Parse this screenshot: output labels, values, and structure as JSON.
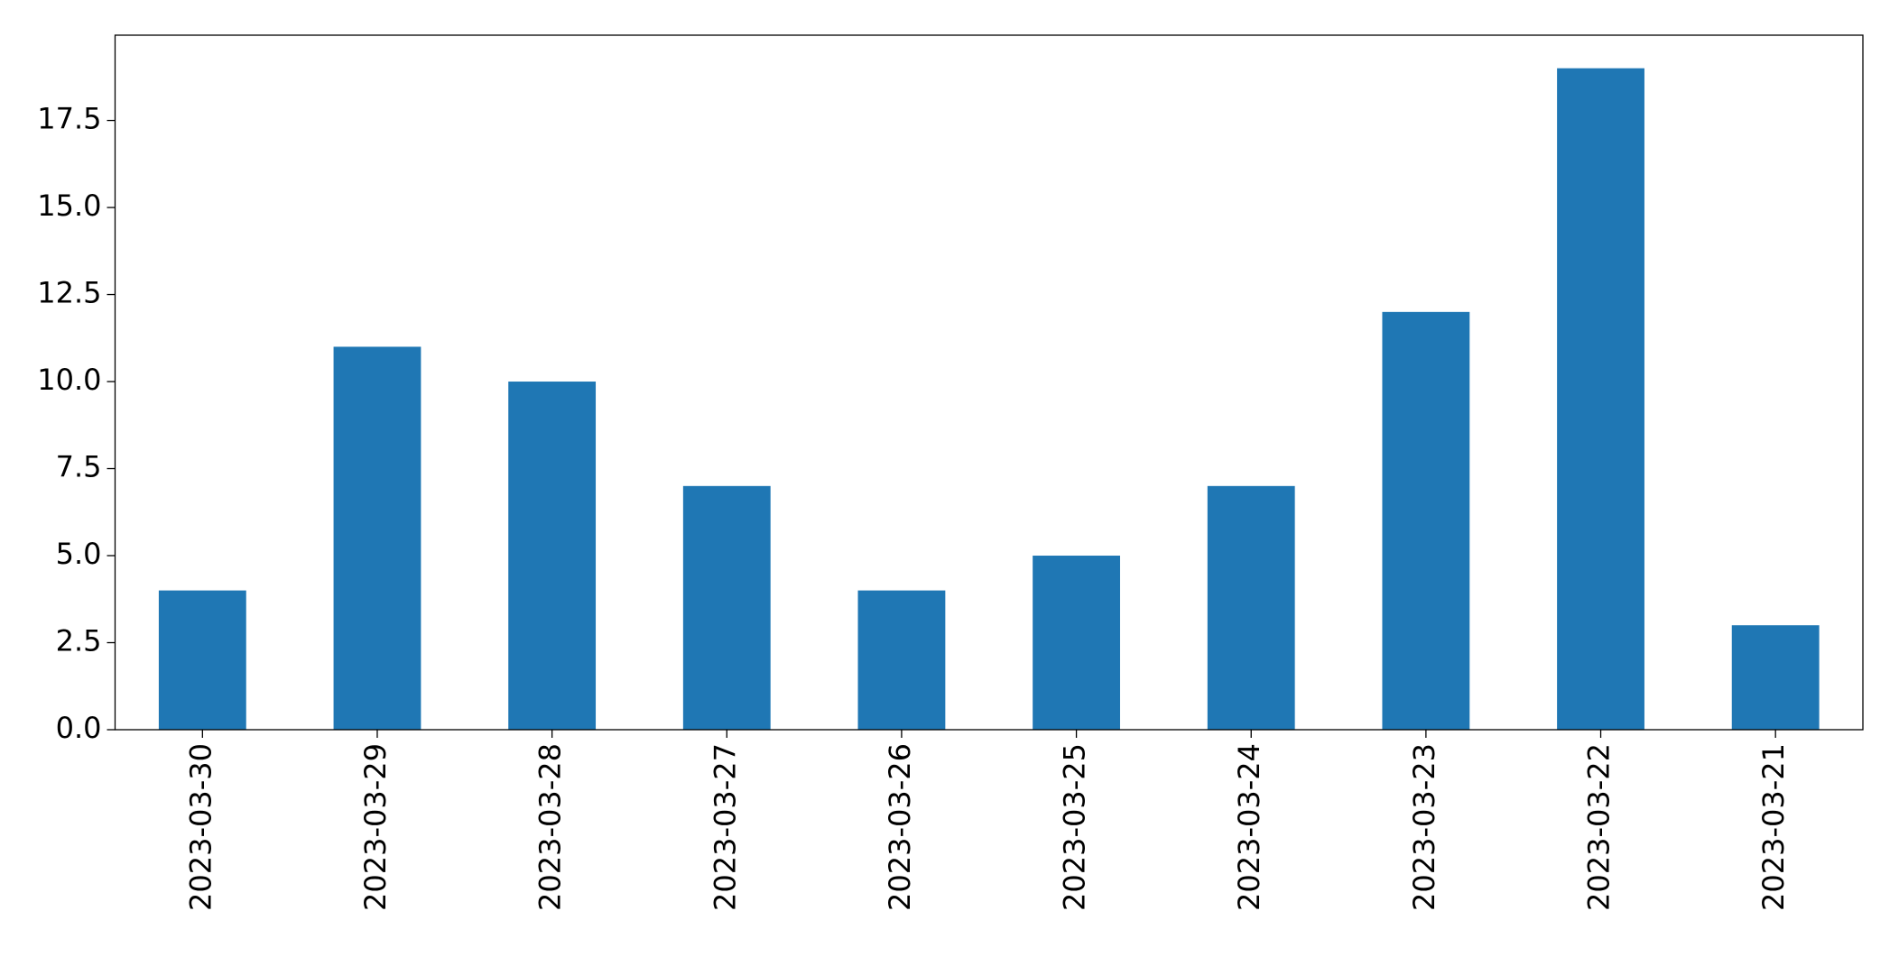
{
  "chart_data": {
    "type": "bar",
    "categories": [
      "2023-03-30",
      "2023-03-29",
      "2023-03-28",
      "2023-03-27",
      "2023-03-26",
      "2023-03-25",
      "2023-03-24",
      "2023-03-23",
      "2023-03-22",
      "2023-03-21"
    ],
    "values": [
      4,
      11,
      10,
      7,
      4,
      5,
      7,
      12,
      19,
      3
    ],
    "color": "#1f77b4",
    "ylim": [
      0,
      19.95
    ],
    "yticks": [
      {
        "value": 0,
        "label": "0.0"
      },
      2.5,
      {
        "value": 5,
        "label": "5.0"
      },
      7.5,
      {
        "value": 10,
        "label": "10.0"
      },
      12.5,
      {
        "value": 15,
        "label": "15.0"
      },
      17.5
    ],
    "grid": false
  }
}
